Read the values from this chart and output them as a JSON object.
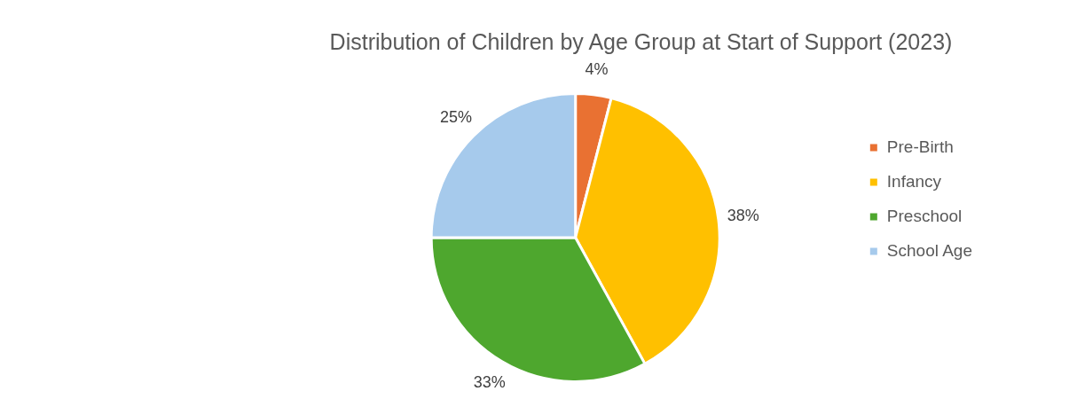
{
  "chart_data": {
    "type": "pie",
    "title": "Distribution of Children by Age Group at Start of Support (2023)",
    "categories": [
      "Pre-Birth",
      "Infancy",
      "Preschool",
      "School Age"
    ],
    "values": [
      4,
      38,
      33,
      25
    ],
    "colors": [
      "#e97132",
      "#ffc000",
      "#4ea72e",
      "#a6caec"
    ],
    "value_labels": [
      "4%",
      "38%",
      "33%",
      "25%"
    ],
    "legend": "right"
  }
}
